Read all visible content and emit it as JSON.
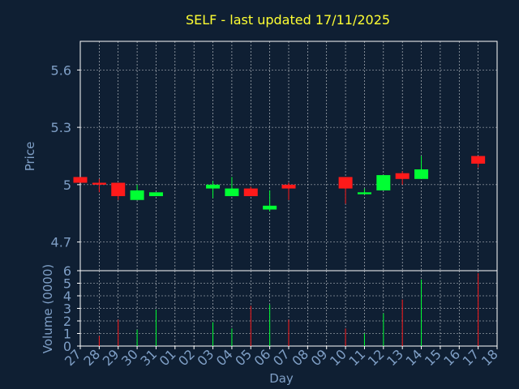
{
  "colors": {
    "background": "#0f1f33",
    "title": "#ffff33",
    "axis_text": "#7f9fc6",
    "frame": "#ffffff",
    "grid": "#ffffff",
    "up": "#00ff33",
    "down": "#ff1a1a"
  },
  "chart_data": [
    {
      "type": "candlestick",
      "title": "SELF - last updated 17/11/2025",
      "ylabel": "Price",
      "ylim": [
        4.55,
        5.75
      ],
      "yticks": [
        4.7,
        5,
        5.3,
        5.6
      ],
      "ytick_labels": [
        "4.7",
        "5",
        "5.3",
        "5.6"
      ],
      "grid": true,
      "categories": [
        "27",
        "28",
        "29",
        "30",
        "31",
        "01",
        "02",
        "03",
        "04",
        "05",
        "06",
        "07",
        "08",
        "09",
        "10",
        "11",
        "12",
        "13",
        "14",
        "15",
        "16",
        "17",
        "18"
      ],
      "candles": [
        {
          "day": "27",
          "open": 5.04,
          "close": 5.01,
          "high": 5.04,
          "low": 5.01
        },
        {
          "day": "28",
          "open": 5.01,
          "close": 5.0,
          "high": 5.03,
          "low": 4.96
        },
        {
          "day": "29",
          "open": 5.01,
          "close": 4.94,
          "high": 5.01,
          "low": 4.92
        },
        {
          "day": "30",
          "open": 4.92,
          "close": 4.97,
          "high": 5.0,
          "low": 4.92
        },
        {
          "day": "31",
          "open": 4.94,
          "close": 4.96,
          "high": 4.96,
          "low": 4.94
        },
        {
          "day": "03",
          "open": 4.98,
          "close": 5.0,
          "high": 5.02,
          "low": 4.93
        },
        {
          "day": "04",
          "open": 4.94,
          "close": 4.98,
          "high": 5.04,
          "low": 4.94
        },
        {
          "day": "05",
          "open": 4.98,
          "close": 4.94,
          "high": 4.99,
          "low": 4.94
        },
        {
          "day": "06",
          "open": 4.87,
          "close": 4.89,
          "high": 4.97,
          "low": 4.86
        },
        {
          "day": "07",
          "open": 5.0,
          "close": 4.98,
          "high": 5.01,
          "low": 4.92
        },
        {
          "day": "10",
          "open": 5.04,
          "close": 4.98,
          "high": 5.04,
          "low": 4.9
        },
        {
          "day": "11",
          "open": 4.95,
          "close": 4.96,
          "high": 4.98,
          "low": 4.95
        },
        {
          "day": "12",
          "open": 4.97,
          "close": 5.05,
          "high": 5.05,
          "low": 4.97
        },
        {
          "day": "13",
          "open": 5.06,
          "close": 5.03,
          "high": 5.07,
          "low": 5.0
        },
        {
          "day": "14",
          "open": 5.03,
          "close": 5.08,
          "high": 5.15,
          "low": 5.03
        },
        {
          "day": "17",
          "open": 5.15,
          "close": 5.11,
          "high": 5.15,
          "low": 5.09
        }
      ]
    },
    {
      "type": "bar",
      "ylabel": "Volume (0000)",
      "xlabel": "Day",
      "ylim": [
        0,
        6
      ],
      "yticks": [
        0,
        1,
        2,
        3,
        4,
        5,
        6
      ],
      "ytick_labels": [
        "0",
        "1",
        "2",
        "3",
        "4",
        "5",
        "6"
      ],
      "grid": true,
      "categories": [
        "27",
        "28",
        "29",
        "30",
        "31",
        "01",
        "02",
        "03",
        "04",
        "05",
        "06",
        "07",
        "08",
        "09",
        "10",
        "11",
        "12",
        "13",
        "14",
        "15",
        "16",
        "17",
        "18"
      ],
      "bars": [
        {
          "day": "28",
          "value": 0.8,
          "direction": "down"
        },
        {
          "day": "29",
          "value": 2.1,
          "direction": "down"
        },
        {
          "day": "30",
          "value": 1.3,
          "direction": "up"
        },
        {
          "day": "31",
          "value": 2.9,
          "direction": "up"
        },
        {
          "day": "03",
          "value": 1.9,
          "direction": "up"
        },
        {
          "day": "04",
          "value": 1.4,
          "direction": "up"
        },
        {
          "day": "05",
          "value": 3.2,
          "direction": "down"
        },
        {
          "day": "06",
          "value": 3.3,
          "direction": "up"
        },
        {
          "day": "07",
          "value": 2.1,
          "direction": "down"
        },
        {
          "day": "10",
          "value": 1.4,
          "direction": "down"
        },
        {
          "day": "11",
          "value": 1.0,
          "direction": "up"
        },
        {
          "day": "12",
          "value": 2.6,
          "direction": "up"
        },
        {
          "day": "13",
          "value": 3.7,
          "direction": "down"
        },
        {
          "day": "14",
          "value": 5.3,
          "direction": "up"
        },
        {
          "day": "17",
          "value": 5.8,
          "direction": "down"
        }
      ]
    }
  ]
}
